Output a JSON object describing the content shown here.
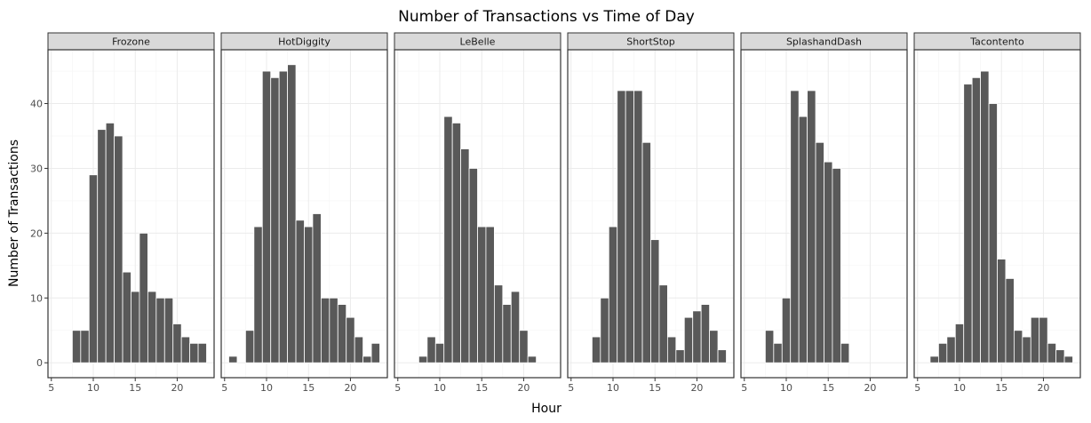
{
  "chart_data": {
    "type": "bar",
    "title": "Number of Transactions vs Time of Day",
    "xlabel": "Hour",
    "ylabel": "Number of Transactions",
    "xlim": [
      4.6,
      24.4
    ],
    "ylim": [
      -2.3,
      48.3
    ],
    "x_ticks": [
      5,
      10,
      15,
      20
    ],
    "y_ticks": [
      0,
      10,
      20,
      30,
      40
    ],
    "grid": true,
    "panels": [
      {
        "name": "Frozone",
        "x": [
          8,
          9,
          10,
          11,
          12,
          13,
          14,
          15,
          16,
          17,
          18,
          19,
          20,
          21,
          22,
          23
        ],
        "values": [
          5,
          5,
          29,
          36,
          37,
          35,
          14,
          11,
          20,
          11,
          10,
          10,
          6,
          4,
          3,
          3
        ]
      },
      {
        "name": "HotDiggity",
        "x": [
          6,
          8,
          9,
          10,
          11,
          12,
          13,
          14,
          15,
          16,
          17,
          18,
          19,
          20,
          21,
          22,
          23
        ],
        "values": [
          1,
          5,
          21,
          45,
          44,
          45,
          46,
          22,
          21,
          23,
          10,
          10,
          9,
          7,
          4,
          1,
          3
        ]
      },
      {
        "name": "LeBelle",
        "x": [
          8,
          9,
          10,
          11,
          12,
          13,
          14,
          15,
          16,
          17,
          18,
          19,
          20,
          21
        ],
        "values": [
          1,
          4,
          3,
          38,
          37,
          33,
          30,
          21,
          21,
          12,
          9,
          11,
          5,
          1
        ]
      },
      {
        "name": "ShortStop",
        "x": [
          8,
          9,
          10,
          11,
          12,
          13,
          14,
          15,
          16,
          17,
          18,
          19,
          20,
          21,
          22,
          23
        ],
        "values": [
          4,
          10,
          21,
          42,
          42,
          42,
          34,
          19,
          12,
          4,
          2,
          7,
          8,
          9,
          5,
          2
        ]
      },
      {
        "name": "SplashandDash",
        "x": [
          8,
          9,
          10,
          11,
          12,
          13,
          14,
          15,
          16,
          17
        ],
        "values": [
          5,
          3,
          10,
          42,
          38,
          42,
          34,
          31,
          30,
          3
        ]
      },
      {
        "name": "Tacontento",
        "x": [
          7,
          8,
          9,
          10,
          11,
          12,
          13,
          14,
          15,
          16,
          17,
          18,
          19,
          20,
          21,
          22,
          23
        ],
        "values": [
          1,
          3,
          4,
          6,
          43,
          44,
          45,
          40,
          16,
          13,
          5,
          4,
          7,
          7,
          3,
          2,
          1
        ]
      }
    ]
  }
}
